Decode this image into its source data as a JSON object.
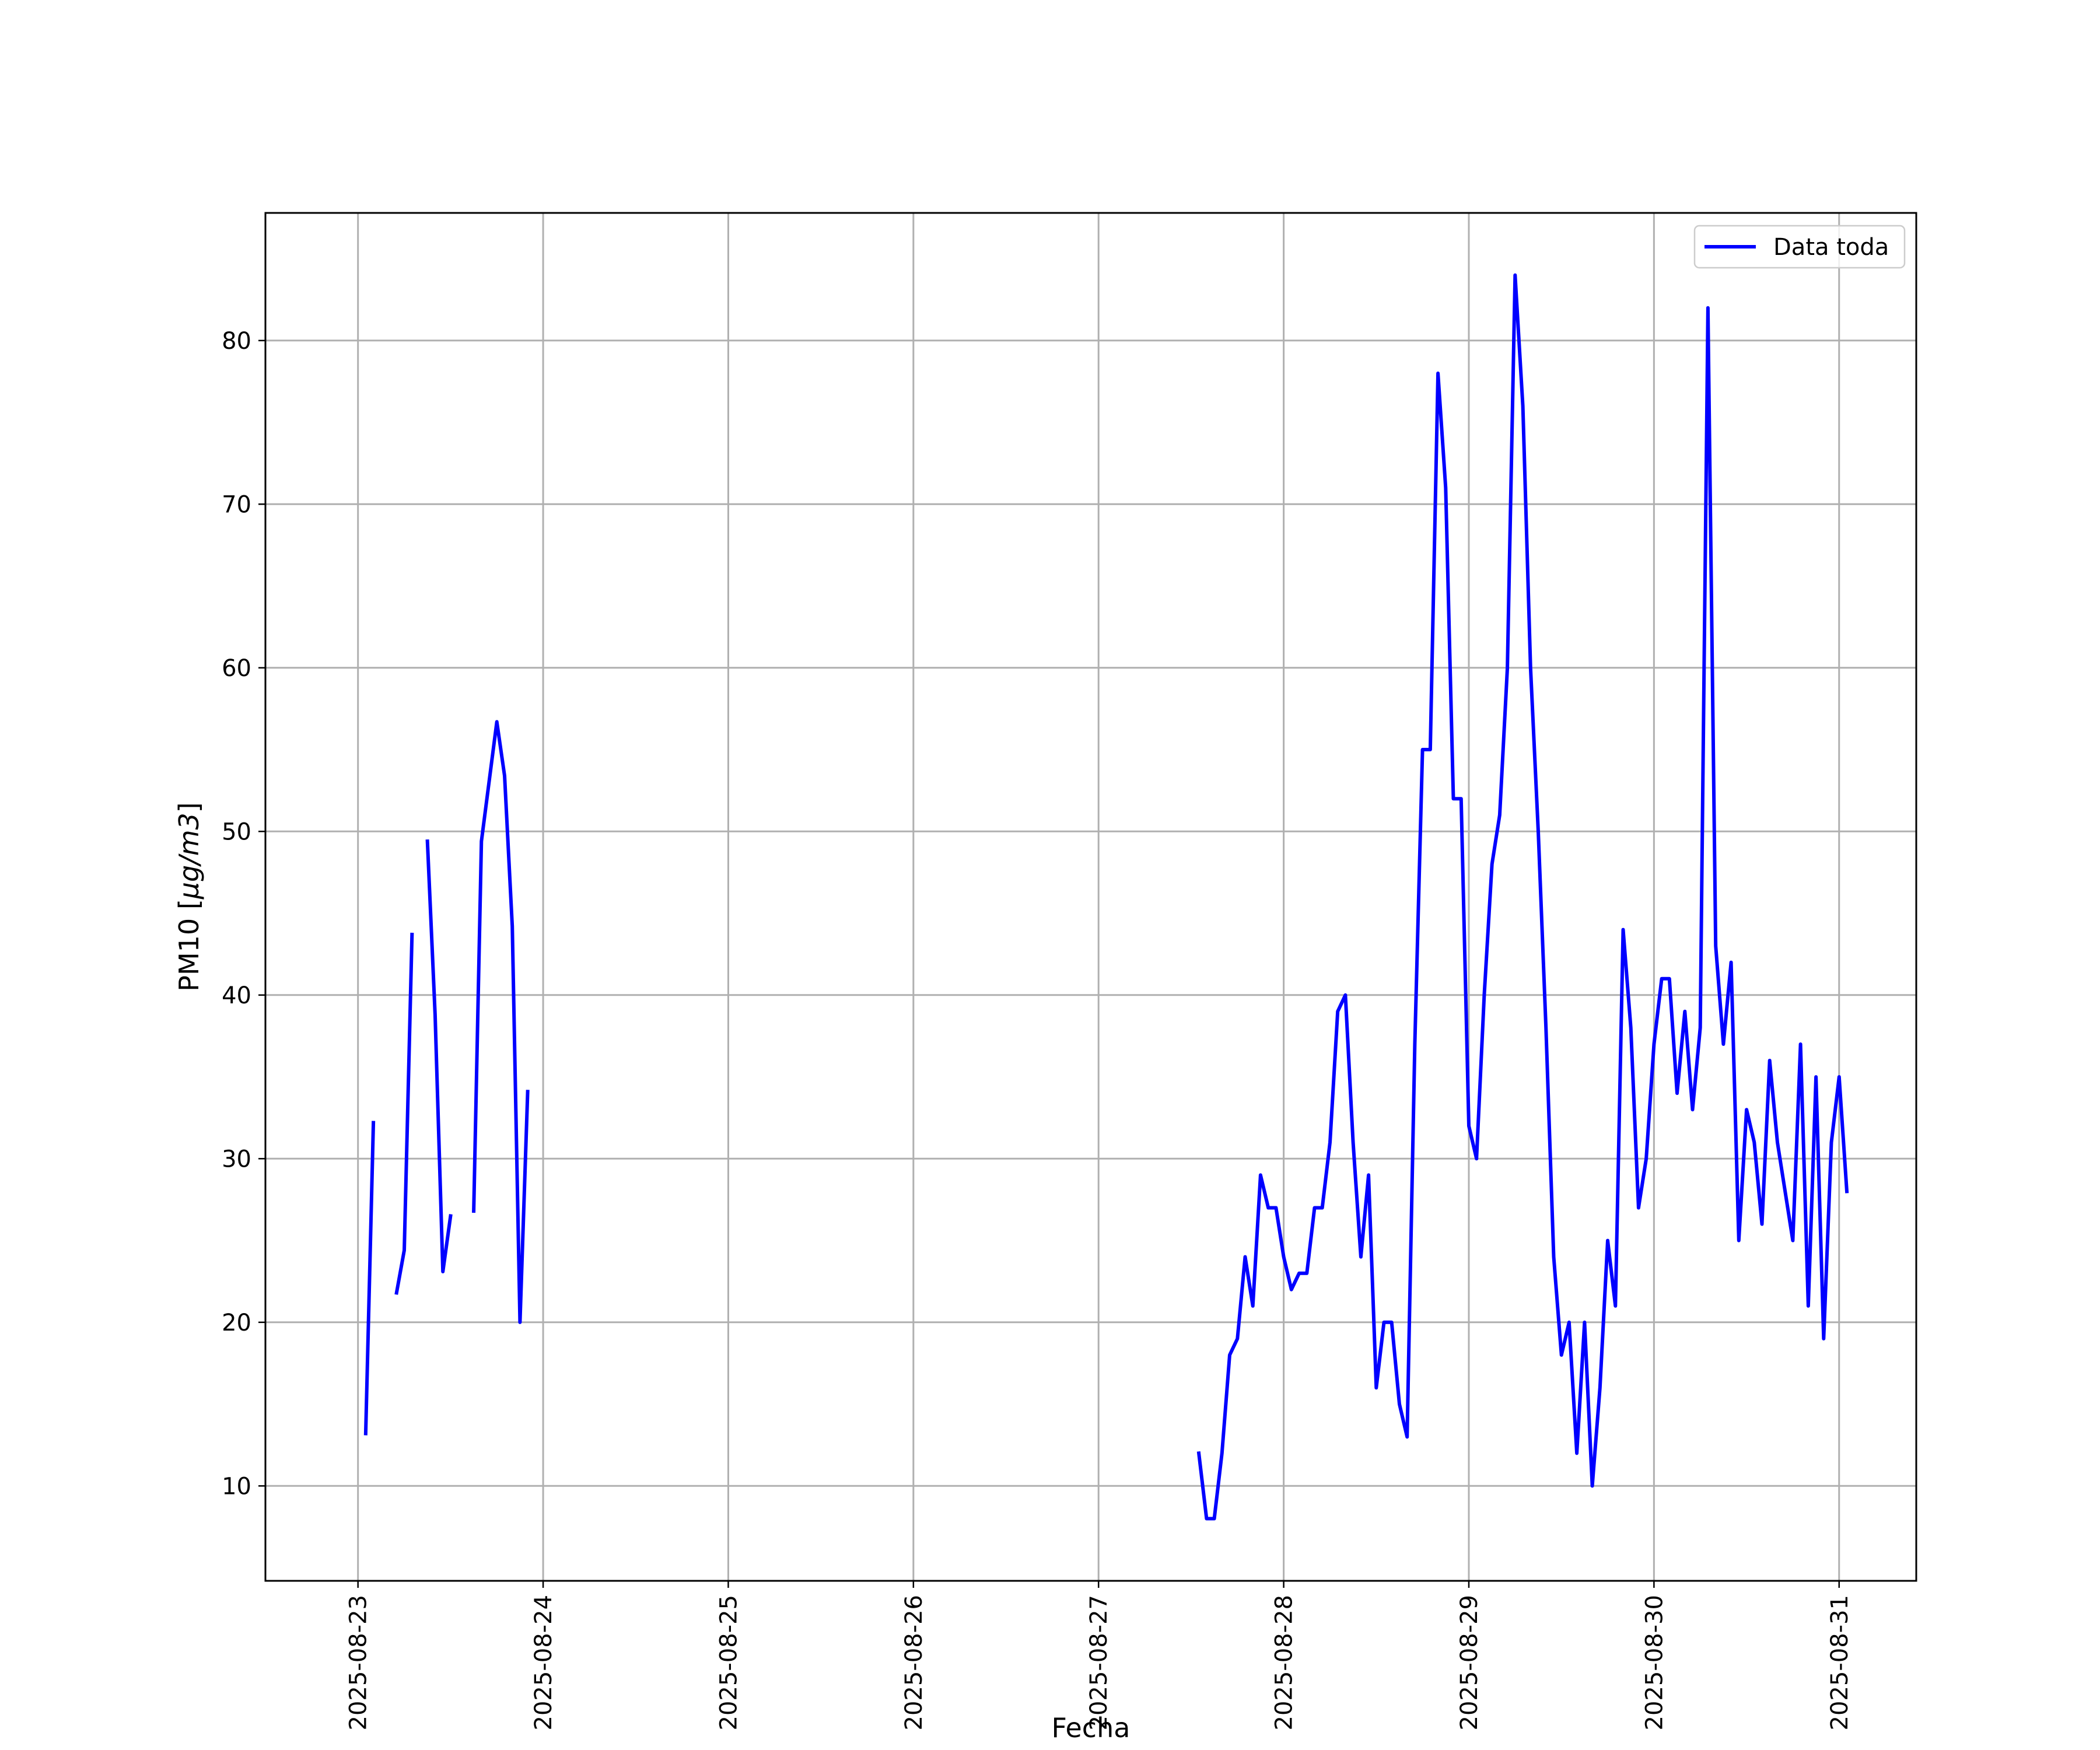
{
  "chart_data": {
    "type": "line",
    "title": "",
    "xlabel": "Fecha",
    "ylabel_prefix": "PM10 [",
    "ylabel_math": "μg/m3",
    "ylabel_suffix": "]",
    "x_ticks": [
      "2025-08-23",
      "2025-08-24",
      "2025-08-25",
      "2025-08-26",
      "2025-08-27",
      "2025-08-28",
      "2025-08-29",
      "2025-08-30",
      "2025-08-31"
    ],
    "y_ticks": [
      "10",
      "20",
      "30",
      "40",
      "50",
      "60",
      "70",
      "80"
    ],
    "xlim": [
      "2025-08-22 12:00",
      "2025-08-31 10:00"
    ],
    "ylim": [
      4.2,
      87.8
    ],
    "grid": true,
    "legend_position": "top-right",
    "colors": {
      "series": "#0000ff",
      "grid": "#b0b0b0"
    },
    "series": [
      {
        "name": "Data toda",
        "segments": [
          [
            [
              "2025-08-23 01:00",
              13.2
            ],
            [
              "2025-08-23 02:00",
              32.2
            ]
          ],
          [
            [
              "2025-08-23 05:00",
              21.8
            ],
            [
              "2025-08-23 06:00",
              24.4
            ],
            [
              "2025-08-23 07:00",
              43.7
            ]
          ],
          [
            [
              "2025-08-23 09:00",
              49.4
            ],
            [
              "2025-08-23 10:00",
              38.8
            ],
            [
              "2025-08-23 11:00",
              23.1
            ],
            [
              "2025-08-23 12:00",
              26.5
            ]
          ],
          [
            [
              "2025-08-23 15:00",
              26.8
            ],
            [
              "2025-08-23 16:00",
              49.4
            ],
            [
              "2025-08-23 18:00",
              56.7
            ],
            [
              "2025-08-23 19:00",
              53.4
            ],
            [
              "2025-08-23 20:00",
              44.2
            ],
            [
              "2025-08-23 21:00",
              20.0
            ],
            [
              "2025-08-23 22:00",
              34.1
            ]
          ],
          [
            [
              "2025-08-27 13:00",
              12
            ],
            [
              "2025-08-27 14:00",
              8
            ],
            [
              "2025-08-27 15:00",
              8
            ],
            [
              "2025-08-27 16:00",
              12
            ],
            [
              "2025-08-27 17:00",
              18
            ],
            [
              "2025-08-27 18:00",
              19
            ],
            [
              "2025-08-27 19:00",
              24
            ],
            [
              "2025-08-27 20:00",
              21
            ],
            [
              "2025-08-27 21:00",
              29
            ],
            [
              "2025-08-27 22:00",
              27
            ],
            [
              "2025-08-27 23:00",
              27
            ],
            [
              "2025-08-28 00:00",
              24
            ],
            [
              "2025-08-28 01:00",
              22
            ],
            [
              "2025-08-28 02:00",
              23
            ],
            [
              "2025-08-28 03:00",
              23
            ],
            [
              "2025-08-28 04:00",
              27
            ],
            [
              "2025-08-28 05:00",
              27
            ],
            [
              "2025-08-28 06:00",
              31
            ],
            [
              "2025-08-28 07:00",
              39
            ],
            [
              "2025-08-28 08:00",
              40
            ],
            [
              "2025-08-28 09:00",
              31
            ],
            [
              "2025-08-28 10:00",
              24
            ],
            [
              "2025-08-28 11:00",
              29
            ],
            [
              "2025-08-28 12:00",
              16
            ],
            [
              "2025-08-28 13:00",
              20
            ],
            [
              "2025-08-28 14:00",
              20
            ],
            [
              "2025-08-28 15:00",
              15
            ],
            [
              "2025-08-28 16:00",
              13
            ],
            [
              "2025-08-28 17:00",
              37
            ],
            [
              "2025-08-28 18:00",
              55
            ],
            [
              "2025-08-28 19:00",
              55
            ],
            [
              "2025-08-28 20:00",
              78
            ],
            [
              "2025-08-28 21:00",
              71
            ],
            [
              "2025-08-28 22:00",
              52
            ],
            [
              "2025-08-28 23:00",
              52
            ],
            [
              "2025-08-29 00:00",
              32
            ],
            [
              "2025-08-29 01:00",
              30
            ],
            [
              "2025-08-29 02:00",
              40
            ],
            [
              "2025-08-29 03:00",
              48
            ],
            [
              "2025-08-29 04:00",
              51
            ],
            [
              "2025-08-29 05:00",
              60
            ],
            [
              "2025-08-29 06:00",
              84
            ],
            [
              "2025-08-29 07:00",
              76
            ],
            [
              "2025-08-29 08:00",
              60
            ],
            [
              "2025-08-29 09:00",
              50
            ],
            [
              "2025-08-29 10:00",
              38
            ],
            [
              "2025-08-29 11:00",
              24
            ],
            [
              "2025-08-29 12:00",
              18
            ],
            [
              "2025-08-29 13:00",
              20
            ],
            [
              "2025-08-29 14:00",
              12
            ],
            [
              "2025-08-29 15:00",
              20
            ],
            [
              "2025-08-29 16:00",
              10
            ],
            [
              "2025-08-29 17:00",
              16
            ],
            [
              "2025-08-29 18:00",
              25
            ],
            [
              "2025-08-29 19:00",
              21
            ],
            [
              "2025-08-29 20:00",
              44
            ],
            [
              "2025-08-29 21:00",
              38
            ],
            [
              "2025-08-29 22:00",
              27
            ],
            [
              "2025-08-29 23:00",
              30
            ],
            [
              "2025-08-30 00:00",
              37
            ],
            [
              "2025-08-30 01:00",
              41
            ],
            [
              "2025-08-30 02:00",
              41
            ],
            [
              "2025-08-30 03:00",
              34
            ],
            [
              "2025-08-30 04:00",
              39
            ],
            [
              "2025-08-30 05:00",
              33
            ],
            [
              "2025-08-30 06:00",
              38
            ],
            [
              "2025-08-30 07:00",
              82
            ],
            [
              "2025-08-30 08:00",
              43
            ],
            [
              "2025-08-30 09:00",
              37
            ],
            [
              "2025-08-30 10:00",
              42
            ],
            [
              "2025-08-30 11:00",
              25
            ],
            [
              "2025-08-30 12:00",
              33
            ],
            [
              "2025-08-30 13:00",
              31
            ],
            [
              "2025-08-30 14:00",
              26
            ],
            [
              "2025-08-30 15:00",
              36
            ],
            [
              "2025-08-30 16:00",
              31
            ],
            [
              "2025-08-30 17:00",
              28
            ],
            [
              "2025-08-30 18:00",
              25
            ],
            [
              "2025-08-30 19:00",
              37
            ],
            [
              "2025-08-30 20:00",
              21
            ],
            [
              "2025-08-30 21:00",
              35
            ],
            [
              "2025-08-30 22:00",
              19
            ],
            [
              "2025-08-30 23:00",
              31
            ],
            [
              "2025-08-31 00:00",
              35
            ],
            [
              "2025-08-31 01:00",
              28
            ]
          ]
        ]
      }
    ]
  }
}
